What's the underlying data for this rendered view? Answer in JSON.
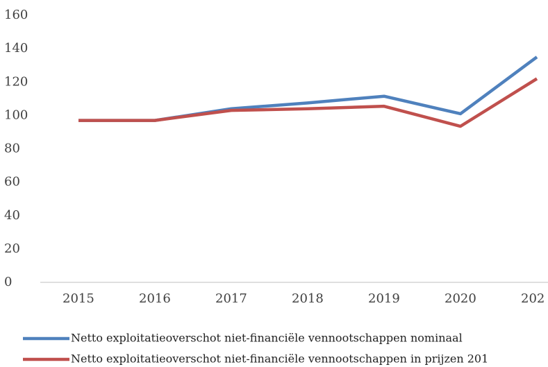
{
  "chart_data": {
    "type": "line",
    "categories": [
      "2015",
      "2016",
      "2017",
      "2018",
      "2019",
      "2020",
      "202"
    ],
    "series": [
      {
        "name": "Netto exploitatieoverschot niet-financiële vennootschappen nominaal",
        "color": "#4f81bd",
        "values": [
          97,
          97,
          104,
          107.5,
          111.5,
          101,
          135
        ]
      },
      {
        "name": "Netto exploitatieoverschot niet-financiële vennootschappen in prijzen 201",
        "color": "#c0504d",
        "values": [
          97,
          97,
          103,
          104,
          105.5,
          93.5,
          122
        ]
      }
    ],
    "ylim": [
      0,
      160
    ],
    "yticks": [
      0,
      20,
      40,
      60,
      80,
      100,
      120,
      140,
      160
    ],
    "grid": false
  }
}
